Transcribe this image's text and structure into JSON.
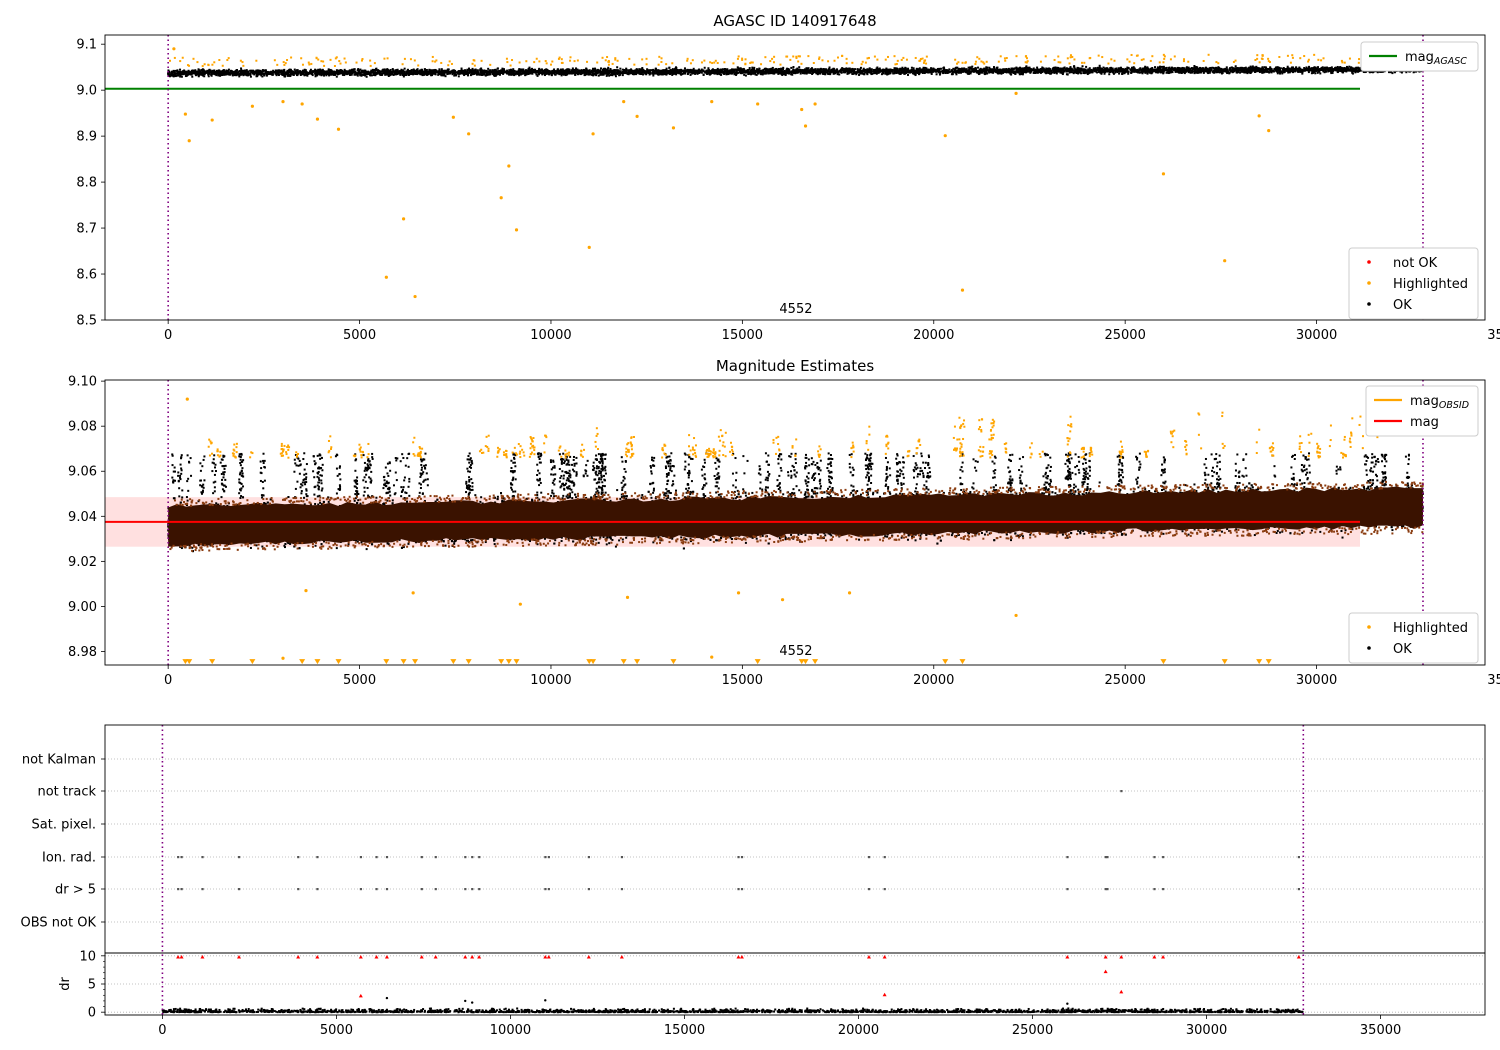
{
  "chart_data": [
    {
      "type": "scatter",
      "title": "AGASC ID 140917648",
      "xlim": [
        -1650,
        34400
      ],
      "ylim": [
        8.5,
        9.12
      ],
      "xticks": [
        0,
        5000,
        10000,
        15000,
        20000,
        25000,
        30000,
        35000
      ],
      "yticks": [
        8.5,
        8.6,
        8.7,
        8.8,
        8.9,
        9.0,
        9.1
      ],
      "ytick_labels": [
        "8.5",
        "8.6",
        "8.7",
        "8.8",
        "8.9",
        "9.0",
        "9.1"
      ],
      "annotation": {
        "text": "4552",
        "x": 16400,
        "y": 8.515
      },
      "obs_boundaries": [
        0,
        32780
      ],
      "horizontal_lines": [
        {
          "name": "mag_AGASC",
          "y": 9.003,
          "x": [
            -1650,
            34400
          ],
          "color": "#008000"
        }
      ],
      "ok_band": {
        "x": [
          0,
          32780
        ],
        "y_center_start": 9.037,
        "y_center_end": 9.045,
        "half_width": 0.012
      },
      "highlighted_points": [
        {
          "x": 150,
          "y": 9.09
        },
        {
          "x": 450,
          "y": 8.948
        },
        {
          "x": 550,
          "y": 8.89
        },
        {
          "x": 1150,
          "y": 8.935
        },
        {
          "x": 2200,
          "y": 8.965
        },
        {
          "x": 3000,
          "y": 8.975
        },
        {
          "x": 3500,
          "y": 8.97
        },
        {
          "x": 3900,
          "y": 8.937
        },
        {
          "x": 4450,
          "y": 8.915
        },
        {
          "x": 5700,
          "y": 8.593
        },
        {
          "x": 6150,
          "y": 8.72
        },
        {
          "x": 6450,
          "y": 8.551
        },
        {
          "x": 7450,
          "y": 8.941
        },
        {
          "x": 7850,
          "y": 8.905
        },
        {
          "x": 8700,
          "y": 8.766
        },
        {
          "x": 8900,
          "y": 8.835
        },
        {
          "x": 9100,
          "y": 8.696
        },
        {
          "x": 11000,
          "y": 8.658
        },
        {
          "x": 11100,
          "y": 8.905
        },
        {
          "x": 11900,
          "y": 8.975
        },
        {
          "x": 12250,
          "y": 8.943
        },
        {
          "x": 13200,
          "y": 8.918
        },
        {
          "x": 14200,
          "y": 8.975
        },
        {
          "x": 15400,
          "y": 8.97
        },
        {
          "x": 16550,
          "y": 8.958
        },
        {
          "x": 16650,
          "y": 8.922
        },
        {
          "x": 16900,
          "y": 8.97
        },
        {
          "x": 20300,
          "y": 8.901
        },
        {
          "x": 20750,
          "y": 8.565
        },
        {
          "x": 22150,
          "y": 8.993
        },
        {
          "x": 26000,
          "y": 8.818
        },
        {
          "x": 27600,
          "y": 8.629
        },
        {
          "x": 28500,
          "y": 8.944
        },
        {
          "x": 28750,
          "y": 8.912
        }
      ],
      "legends": [
        {
          "position": "upper right",
          "entries": [
            {
              "label": "mag",
              "sub": "AGASC",
              "color": "#008000",
              "marker": "line"
            }
          ]
        },
        {
          "position": "lower right",
          "entries": [
            {
              "label": "not OK",
              "color": "#ff0000",
              "marker": "dot"
            },
            {
              "label": "Highlighted",
              "color": "#ffa500",
              "marker": "dot"
            },
            {
              "label": "OK",
              "color": "#000000",
              "marker": "dot"
            }
          ]
        }
      ]
    },
    {
      "type": "scatter",
      "title": "Magnitude Estimates",
      "xlim": [
        -1650,
        34400
      ],
      "ylim": [
        8.974,
        9.1005
      ],
      "xticks": [
        0,
        5000,
        10000,
        15000,
        20000,
        25000,
        30000,
        35000
      ],
      "yticks": [
        8.98,
        9.0,
        9.02,
        9.04,
        9.06,
        9.08,
        9.1
      ],
      "ytick_labels": [
        "8.98",
        "9.00",
        "9.02",
        "9.04",
        "9.06",
        "9.08",
        "9.10"
      ],
      "annotation": {
        "text": "4552",
        "x": 16400,
        "y": 8.9785
      },
      "obs_boundaries": [
        0,
        32780
      ],
      "horizontal_lines": [
        {
          "name": "mag",
          "y": 9.0375,
          "x": [
            -1650,
            34400
          ],
          "color": "#ff0000"
        }
      ],
      "error_band": {
        "y_low": 9.0265,
        "y_high": 9.0485,
        "x": [
          -1650,
          34400
        ],
        "color": "#ff9999"
      },
      "mag_obsid_band": {
        "x": [
          0,
          32780
        ],
        "y_center_start": 9.036,
        "y_center_end": 9.044,
        "half_width": 0.0085
      },
      "clipped_markers_y": 8.9755,
      "clipped_markers_x": [
        450,
        550,
        1150,
        2200,
        3500,
        3900,
        4450,
        5700,
        6150,
        6450,
        7450,
        7850,
        8700,
        8900,
        9100,
        11000,
        11100,
        11900,
        12250,
        13200,
        15400,
        16550,
        16650,
        16900,
        20300,
        20750,
        26000,
        27600,
        28500,
        28750
      ],
      "outlier_points": [
        {
          "x": 3000,
          "y": 8.977
        },
        {
          "x": 14200,
          "y": 8.9775
        },
        {
          "x": 22150,
          "y": 8.996
        },
        {
          "x": 12000,
          "y": 9.004
        },
        {
          "x": 16050,
          "y": 9.003
        },
        {
          "x": 9200,
          "y": 9.001
        },
        {
          "x": 3600,
          "y": 9.007
        },
        {
          "x": 6400,
          "y": 9.006
        },
        {
          "x": 14900,
          "y": 9.006
        },
        {
          "x": 17800,
          "y": 9.006
        },
        {
          "x": 500,
          "y": 9.092
        }
      ],
      "legends": [
        {
          "position": "upper right",
          "entries": [
            {
              "label": "mag",
              "sub": "OBSID",
              "color": "#ffa500",
              "marker": "line"
            },
            {
              "label": "mag",
              "color": "#ff0000",
              "marker": "line"
            }
          ]
        },
        {
          "position": "lower right",
          "entries": [
            {
              "label": "Highlighted",
              "color": "#ffa500",
              "marker": "dot"
            },
            {
              "label": "OK",
              "color": "#000000",
              "marker": "dot"
            }
          ]
        }
      ]
    },
    {
      "type": "scatter",
      "title": "",
      "xlim": [
        -1650,
        38000
      ],
      "xticks": [
        0,
        5000,
        10000,
        15000,
        20000,
        25000,
        30000,
        35000
      ],
      "obs_boundaries": [
        0,
        32780
      ],
      "flag_labels": [
        "not Kalman",
        "not track",
        "Sat. pixel.",
        "Ion. rad.",
        "dr > 5",
        "OBS not OK"
      ],
      "flag_points": {
        "not Kalman": [],
        "not track": [
          27550
        ],
        "Sat. pixel.": [],
        "Ion. rad.": [
          450,
          550,
          1150,
          2200,
          3900,
          4450,
          5700,
          6150,
          6450,
          7450,
          7850,
          8700,
          8900,
          9100,
          11000,
          11100,
          12250,
          13200,
          16550,
          16650,
          20300,
          20750,
          26000,
          27100,
          27150,
          28500,
          28750,
          32650
        ],
        "dr > 5": [
          450,
          550,
          1150,
          2200,
          3900,
          4450,
          5700,
          6150,
          6450,
          7450,
          7850,
          8700,
          8900,
          9100,
          11000,
          11100,
          12250,
          13200,
          16550,
          16650,
          20300,
          20750,
          26000,
          27100,
          27150,
          28500,
          28750,
          32650
        ],
        "OBS not OK": []
      },
      "dr_axis": {
        "ylabel": "dr",
        "ylim": [
          -0.5,
          10.5
        ],
        "yticks": [
          0,
          5,
          10
        ],
        "ytick_labels": [
          "0",
          "5",
          "10"
        ],
        "gridlines": [
          0,
          5,
          10
        ],
        "high_points": [
          {
            "x": 450,
            "y": 9.8
          },
          {
            "x": 550,
            "y": 9.8
          },
          {
            "x": 1150,
            "y": 9.8
          },
          {
            "x": 2200,
            "y": 9.8
          },
          {
            "x": 3900,
            "y": 9.8
          },
          {
            "x": 4450,
            "y": 9.8
          },
          {
            "x": 5700,
            "y": 9.8
          },
          {
            "x": 6150,
            "y": 9.8
          },
          {
            "x": 6450,
            "y": 9.8
          },
          {
            "x": 7450,
            "y": 9.8
          },
          {
            "x": 7850,
            "y": 9.8
          },
          {
            "x": 8700,
            "y": 9.8
          },
          {
            "x": 8900,
            "y": 9.8
          },
          {
            "x": 9100,
            "y": 9.8
          },
          {
            "x": 11000,
            "y": 9.8
          },
          {
            "x": 11100,
            "y": 9.8
          },
          {
            "x": 12250,
            "y": 9.8
          },
          {
            "x": 13200,
            "y": 9.8
          },
          {
            "x": 16550,
            "y": 9.8
          },
          {
            "x": 16650,
            "y": 9.8
          },
          {
            "x": 20300,
            "y": 9.8
          },
          {
            "x": 20750,
            "y": 9.8
          },
          {
            "x": 26000,
            "y": 9.8
          },
          {
            "x": 27100,
            "y": 9.8
          },
          {
            "x": 27550,
            "y": 9.8
          },
          {
            "x": 28500,
            "y": 9.8
          },
          {
            "x": 28750,
            "y": 9.8
          },
          {
            "x": 32650,
            "y": 9.8
          },
          {
            "x": 5700,
            "y": 2.9
          },
          {
            "x": 20750,
            "y": 3.1
          },
          {
            "x": 27100,
            "y": 7.2
          },
          {
            "x": 27550,
            "y": 3.6
          }
        ],
        "medium_points": [
          {
            "x": 6450,
            "y": 2.5
          },
          {
            "x": 8700,
            "y": 2.0
          },
          {
            "x": 8900,
            "y": 1.7
          },
          {
            "x": 11000,
            "y": 2.1
          },
          {
            "x": 26000,
            "y": 1.5
          }
        ],
        "baseline_range": [
          0,
          0.7
        ]
      }
    }
  ]
}
